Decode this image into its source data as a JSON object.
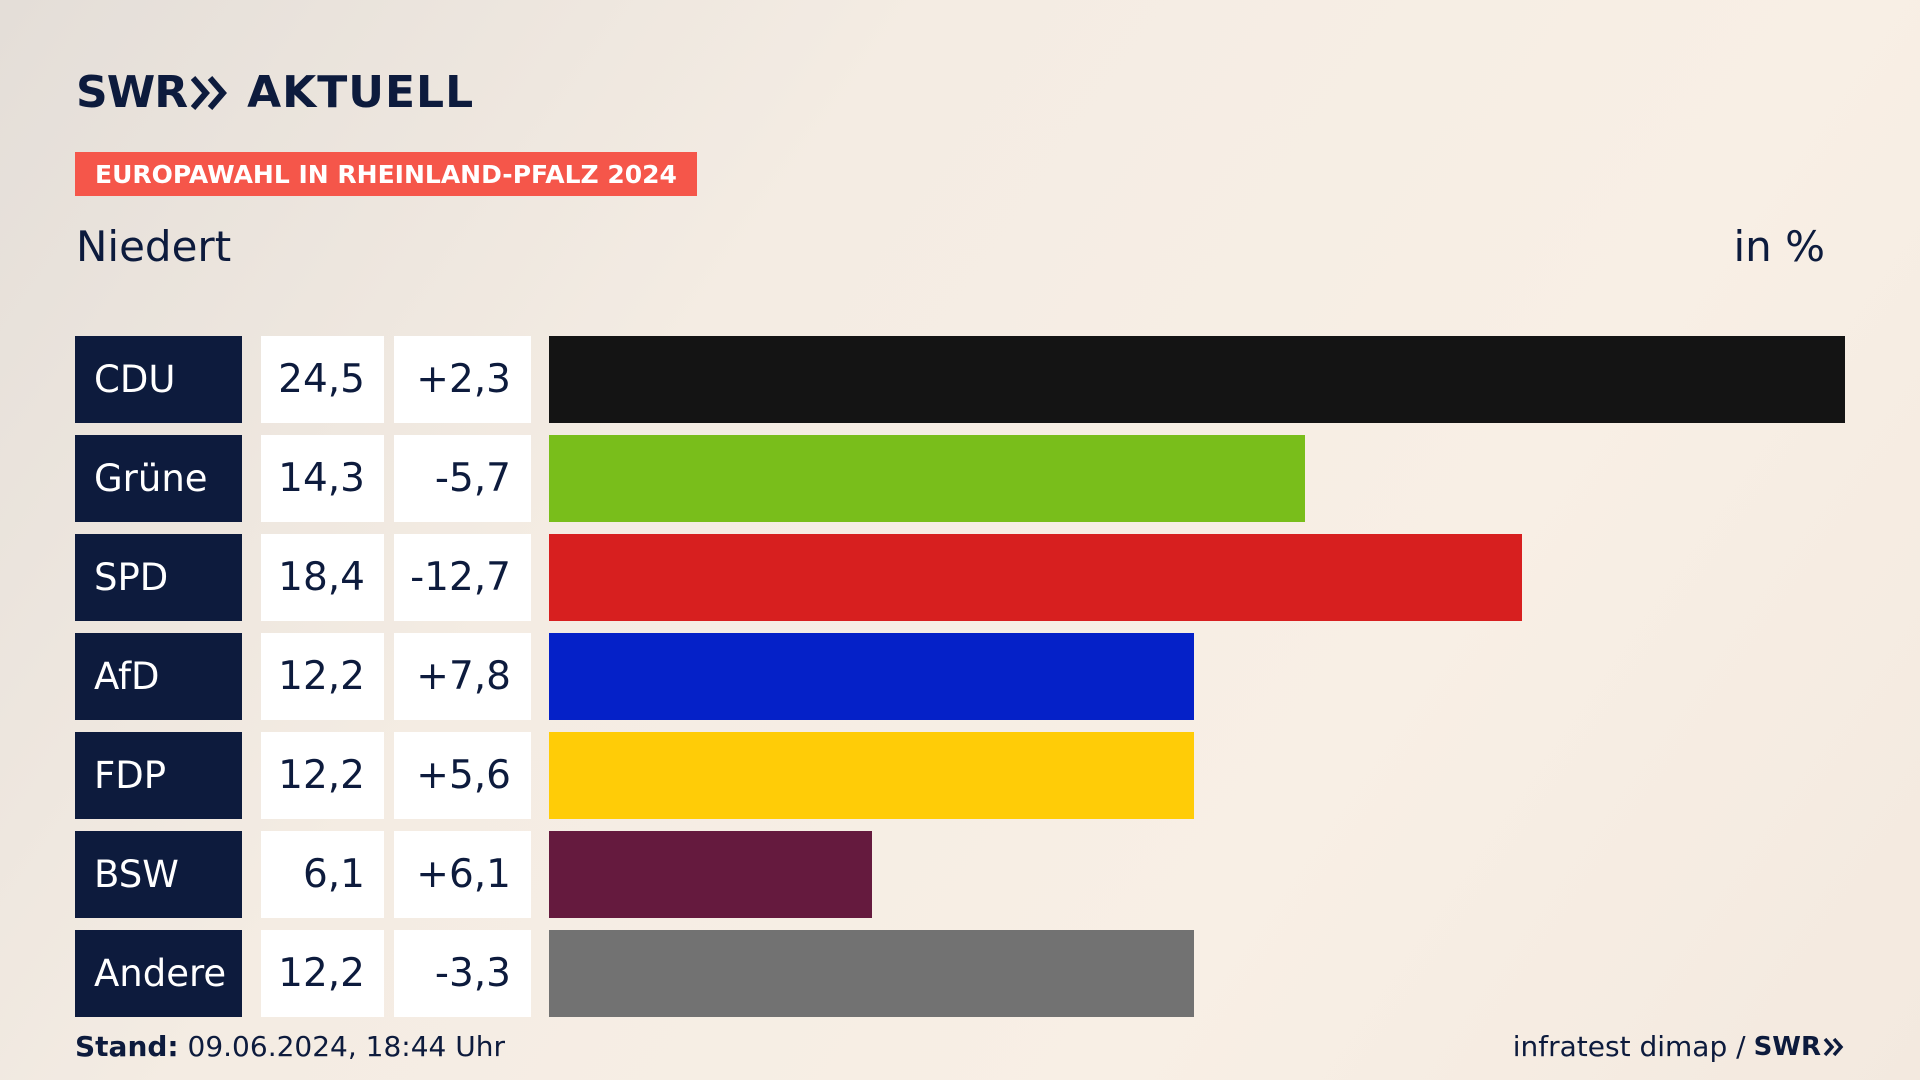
{
  "brand": {
    "logo_swr": "SWR",
    "logo_aktuell": "AKTUELL",
    "color_primary": "#0d1b3d",
    "color_accent": "#f5564a"
  },
  "header": {
    "badge": "EUROPAWAHL IN RHEINLAND-PFALZ 2024",
    "region": "Niedert",
    "unit": "in %"
  },
  "footer": {
    "stand_label": "Stand:",
    "stand_value": "09.06.2024, 18:44 Uhr",
    "source": "infratest dimap /",
    "source_logo": "SWR"
  },
  "chart_data": {
    "type": "bar",
    "orientation": "horizontal",
    "xlim": [
      0,
      24.5
    ],
    "categories": [
      "CDU",
      "Grüne",
      "SPD",
      "AfD",
      "FDP",
      "BSW",
      "Andere"
    ],
    "values": [
      24.5,
      14.3,
      18.4,
      12.2,
      12.2,
      6.1,
      12.2
    ],
    "value_labels": [
      "24,5",
      "14,3",
      "18,4",
      "12,2",
      "12,2",
      "6,1",
      "12,2"
    ],
    "diff_labels": [
      "+2,3",
      "-5,7",
      "-12,7",
      "+7,8",
      "+5,6",
      "+6,1",
      "-3,3"
    ],
    "colors": [
      "#141414",
      "#79be1b",
      "#d71f1f",
      "#0521c8",
      "#ffcc07",
      "#651a3e",
      "#727272"
    ]
  }
}
